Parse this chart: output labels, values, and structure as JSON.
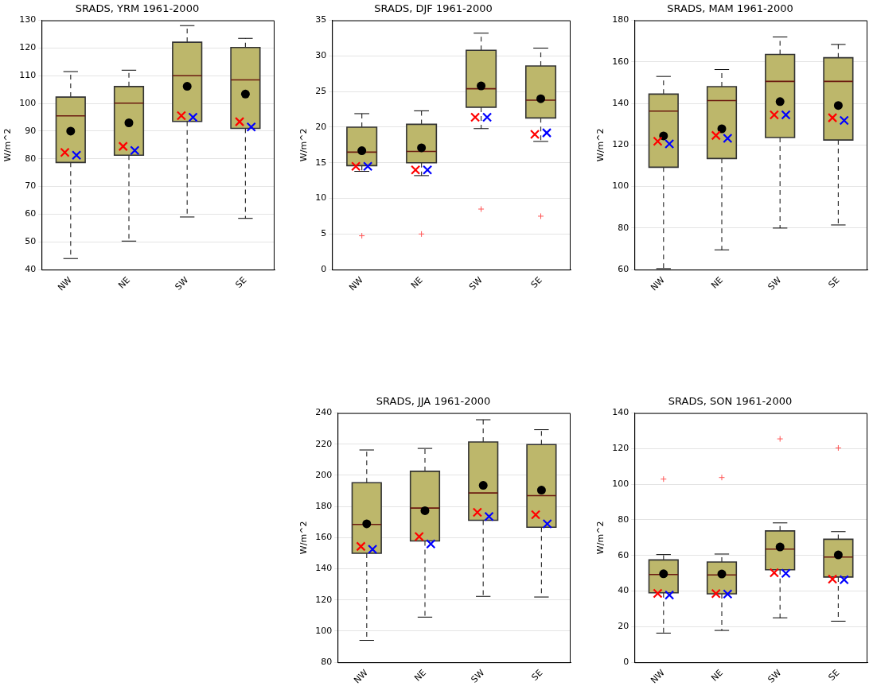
{
  "chart_data": [
    {
      "type": "box",
      "title": "SRADS, YRM 1961-2000",
      "ylabel": "W/m^2",
      "categories": [
        "NW",
        "NE",
        "SW",
        "SE"
      ],
      "ylim": [
        40,
        130
      ],
      "yticks": [
        40,
        50,
        60,
        70,
        80,
        90,
        100,
        110,
        120,
        130
      ],
      "grid": "y",
      "series": [
        {
          "type": "box",
          "color": "#bdb76b",
          "boxes": [
            {
              "low": 44,
              "q1": 78.7,
              "median": 95.5,
              "q3": 102.3,
              "high": 111.5,
              "mean": 90
            },
            {
              "low": 50.3,
              "q1": 81.3,
              "median": 100.1,
              "q3": 106.1,
              "high": 112,
              "mean": 93
            },
            {
              "low": 59,
              "q1": 93.5,
              "median": 110,
              "q3": 122.1,
              "high": 128.1,
              "mean": 106.2
            },
            {
              "low": 58.5,
              "q1": 91,
              "median": 108.5,
              "q3": 120.2,
              "high": 123.5,
              "mean": 103.4
            }
          ]
        },
        {
          "type": "scatter",
          "color": "#ff0000",
          "marker": "cross",
          "x": [
            "NW",
            "NE",
            "SW",
            "SE"
          ],
          "values": [
            82.3,
            84.5,
            95.6,
            93.4
          ]
        },
        {
          "type": "scatter",
          "color": "#0000ff",
          "marker": "cross",
          "x": [
            "NW",
            "NE",
            "SW",
            "SE"
          ],
          "values": [
            81.3,
            83,
            95,
            91.5
          ]
        }
      ]
    },
    {
      "type": "box",
      "title": "SRADS, DJF 1961-2000",
      "ylabel": "W/m^2",
      "categories": [
        "NW",
        "NE",
        "SW",
        "SE"
      ],
      "ylim": [
        0,
        35
      ],
      "yticks": [
        0,
        5,
        10,
        15,
        20,
        25,
        30,
        35
      ],
      "grid": "y",
      "series": [
        {
          "type": "box",
          "color": "#bdb76b",
          "boxes": [
            {
              "low": 13.8,
              "q1": 14.6,
              "median": 16.5,
              "q3": 20,
              "high": 21.9,
              "mean": 16.7,
              "outliers": [
                4.75
              ]
            },
            {
              "low": 13.2,
              "q1": 15,
              "median": 16.6,
              "q3": 20.4,
              "high": 22.3,
              "mean": 17.1,
              "outliers": [
                5
              ]
            },
            {
              "low": 19.8,
              "q1": 22.8,
              "median": 25.4,
              "q3": 30.8,
              "high": 33.2,
              "mean": 25.8,
              "outliers": [
                8.5
              ]
            },
            {
              "low": 18,
              "q1": 21.3,
              "median": 23.8,
              "q3": 28.6,
              "high": 31.1,
              "mean": 24,
              "outliers": [
                7.5
              ]
            }
          ]
        },
        {
          "type": "scatter",
          "color": "#ff0000",
          "marker": "cross",
          "x": [
            "NW",
            "NE",
            "SW",
            "SE"
          ],
          "values": [
            14.5,
            14,
            21.4,
            19
          ]
        },
        {
          "type": "scatter",
          "color": "#0000ff",
          "marker": "cross",
          "x": [
            "NW",
            "NE",
            "SW",
            "SE"
          ],
          "values": [
            14.5,
            14,
            21.4,
            19.2
          ]
        }
      ]
    },
    {
      "type": "box",
      "title": "SRADS, MAM 1961-2000",
      "ylabel": "W/m^2",
      "categories": [
        "NW",
        "NE",
        "SW",
        "SE"
      ],
      "ylim": [
        60,
        180
      ],
      "yticks": [
        60,
        80,
        100,
        120,
        140,
        160,
        180
      ],
      "grid": "y",
      "series": [
        {
          "type": "box",
          "color": "#bdb76b",
          "boxes": [
            {
              "low": 60.5,
              "q1": 109.3,
              "median": 136.3,
              "q3": 144.5,
              "high": 153,
              "mean": 124.4
            },
            {
              "low": 69.5,
              "q1": 113.5,
              "median": 141.4,
              "q3": 148.1,
              "high": 156.3,
              "mean": 127.8
            },
            {
              "low": 80,
              "q1": 123.6,
              "median": 150.6,
              "q3": 163.6,
              "high": 172,
              "mean": 140.9
            },
            {
              "low": 81.5,
              "q1": 122.4,
              "median": 150.6,
              "q3": 162,
              "high": 168.4,
              "mean": 139
            }
          ]
        },
        {
          "type": "scatter",
          "color": "#ff0000",
          "marker": "cross",
          "x": [
            "NW",
            "NE",
            "SW",
            "SE"
          ],
          "values": [
            121.8,
            124.6,
            134.5,
            133.1
          ]
        },
        {
          "type": "scatter",
          "color": "#0000ff",
          "marker": "cross",
          "x": [
            "NW",
            "NE",
            "SW",
            "SE"
          ],
          "values": [
            120.5,
            123.2,
            134.5,
            131.8
          ]
        }
      ]
    },
    {
      "type": "box",
      "title": "SRADS, JJA 1961-2000",
      "ylabel": "W/m^2",
      "categories": [
        "NW",
        "NE",
        "SW",
        "SE"
      ],
      "ylim": [
        80,
        240
      ],
      "yticks": [
        80,
        100,
        120,
        140,
        160,
        180,
        200,
        220,
        240
      ],
      "grid": "y",
      "series": [
        {
          "type": "box",
          "color": "#bdb76b",
          "boxes": [
            {
              "low": 94.1,
              "q1": 150,
              "median": 168.5,
              "q3": 195.3,
              "high": 216.3,
              "mean": 168.9
            },
            {
              "low": 109,
              "q1": 157.9,
              "median": 179,
              "q3": 202.6,
              "high": 217.3,
              "mean": 177.3
            },
            {
              "low": 122.3,
              "q1": 171.2,
              "median": 188.7,
              "q3": 221.4,
              "high": 235.7,
              "mean": 193.6
            },
            {
              "low": 121.9,
              "q1": 166.7,
              "median": 187,
              "q3": 219.8,
              "high": 229.3,
              "mean": 190.5
            }
          ]
        },
        {
          "type": "scatter",
          "color": "#ff0000",
          "marker": "cross",
          "x": [
            "NW",
            "NE",
            "SW",
            "SE"
          ],
          "values": [
            154.4,
            160.7,
            176.3,
            174.7
          ]
        },
        {
          "type": "scatter",
          "color": "#0000ff",
          "marker": "cross",
          "x": [
            "NW",
            "NE",
            "SW",
            "SE"
          ],
          "values": [
            152.5,
            156,
            173.6,
            168.9
          ]
        }
      ]
    },
    {
      "type": "box",
      "title": "SRADS, SON 1961-2000",
      "ylabel": "W/m^2",
      "categories": [
        "NW",
        "NE",
        "SW",
        "SE"
      ],
      "ylim": [
        0,
        140
      ],
      "yticks": [
        0,
        20,
        40,
        60,
        80,
        100,
        120,
        140
      ],
      "grid": "y",
      "series": [
        {
          "type": "box",
          "color": "#bdb76b",
          "boxes": [
            {
              "low": 16.4,
              "q1": 39,
              "median": 49.3,
              "q3": 57.5,
              "high": 60.5,
              "mean": 49.7,
              "outliers": [
                102.9
              ]
            },
            {
              "low": 17.9,
              "q1": 38.5,
              "median": 49.1,
              "q3": 56.3,
              "high": 60.8,
              "mean": 49.6,
              "outliers": [
                103.8
              ]
            },
            {
              "low": 25,
              "q1": 52,
              "median": 63.6,
              "q3": 73.8,
              "high": 78.3,
              "mean": 64.8,
              "outliers": [
                125.5
              ]
            },
            {
              "low": 23.1,
              "q1": 47.9,
              "median": 59.1,
              "q3": 69.1,
              "high": 73.4,
              "mean": 60.3,
              "outliers": [
                120.4
              ]
            }
          ]
        },
        {
          "type": "scatter",
          "color": "#ff0000",
          "marker": "cross",
          "x": [
            "NW",
            "NE",
            "SW",
            "SE"
          ],
          "values": [
            38.7,
            38.6,
            50.3,
            46.7
          ]
        },
        {
          "type": "scatter",
          "color": "#0000ff",
          "marker": "cross",
          "x": [
            "NW",
            "NE",
            "SW",
            "SE"
          ],
          "values": [
            37.8,
            38.4,
            50,
            46.4
          ]
        }
      ]
    }
  ]
}
